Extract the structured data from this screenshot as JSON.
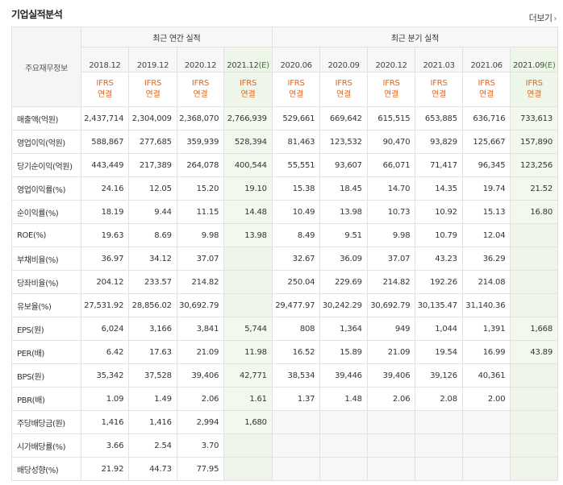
{
  "header": {
    "title": "기업실적분석",
    "more_label": "더보기"
  },
  "table": {
    "row_header_label": "주요재무정보",
    "groups": [
      {
        "label": "최근 연간 실적"
      },
      {
        "label": "최근 분기 실적"
      }
    ],
    "periods": [
      {
        "label": "2018.12",
        "estimate_mark": "",
        "accounting": "IFRS",
        "basis": "연결",
        "estimate": false
      },
      {
        "label": "2019.12",
        "estimate_mark": "",
        "accounting": "IFRS",
        "basis": "연결",
        "estimate": false
      },
      {
        "label": "2020.12",
        "estimate_mark": "",
        "accounting": "IFRS",
        "basis": "연결",
        "estimate": false
      },
      {
        "label": "2021.12",
        "estimate_mark": "(E)",
        "accounting": "IFRS",
        "basis": "연결",
        "estimate": true
      },
      {
        "label": "2020.06",
        "estimate_mark": "",
        "accounting": "IFRS",
        "basis": "연결",
        "estimate": false
      },
      {
        "label": "2020.09",
        "estimate_mark": "",
        "accounting": "IFRS",
        "basis": "연결",
        "estimate": false
      },
      {
        "label": "2020.12",
        "estimate_mark": "",
        "accounting": "IFRS",
        "basis": "연결",
        "estimate": false
      },
      {
        "label": "2021.03",
        "estimate_mark": "",
        "accounting": "IFRS",
        "basis": "연결",
        "estimate": false
      },
      {
        "label": "2021.06",
        "estimate_mark": "",
        "accounting": "IFRS",
        "basis": "연결",
        "estimate": false
      },
      {
        "label": "2021.09",
        "estimate_mark": "(E)",
        "accounting": "IFRS",
        "basis": "연결",
        "estimate": true
      }
    ],
    "rows": [
      {
        "label": "매출액(억원)",
        "values": [
          "2,437,714",
          "2,304,009",
          "2,368,070",
          "2,766,939",
          "529,661",
          "669,642",
          "615,515",
          "653,885",
          "636,716",
          "733,613"
        ]
      },
      {
        "label": "영업이익(억원)",
        "values": [
          "588,867",
          "277,685",
          "359,939",
          "528,394",
          "81,463",
          "123,532",
          "90,470",
          "93,829",
          "125,667",
          "157,890"
        ]
      },
      {
        "label": "당기순이익(억원)",
        "values": [
          "443,449",
          "217,389",
          "264,078",
          "400,544",
          "55,551",
          "93,607",
          "66,071",
          "71,417",
          "96,345",
          "123,256"
        ]
      },
      {
        "label": "영업이익률(%)",
        "values": [
          "24.16",
          "12.05",
          "15.20",
          "19.10",
          "15.38",
          "18.45",
          "14.70",
          "14.35",
          "19.74",
          "21.52"
        ]
      },
      {
        "label": "순이익률(%)",
        "values": [
          "18.19",
          "9.44",
          "11.15",
          "14.48",
          "10.49",
          "13.98",
          "10.73",
          "10.92",
          "15.13",
          "16.80"
        ]
      },
      {
        "label": "ROE(%)",
        "values": [
          "19.63",
          "8.69",
          "9.98",
          "13.98",
          "8.49",
          "9.51",
          "9.98",
          "10.79",
          "12.04",
          ""
        ]
      },
      {
        "label": "부채비율(%)",
        "values": [
          "36.97",
          "34.12",
          "37.07",
          "",
          "32.67",
          "36.09",
          "37.07",
          "43.23",
          "36.29",
          ""
        ]
      },
      {
        "label": "당좌비율(%)",
        "values": [
          "204.12",
          "233.57",
          "214.82",
          "",
          "250.04",
          "229.69",
          "214.82",
          "192.26",
          "214.08",
          ""
        ]
      },
      {
        "label": "유보율(%)",
        "values": [
          "27,531.92",
          "28,856.02",
          "30,692.79",
          "",
          "29,477.97",
          "30,242.29",
          "30,692.79",
          "30,135.47",
          "31,140.36",
          ""
        ]
      },
      {
        "label": "EPS(원)",
        "values": [
          "6,024",
          "3,166",
          "3,841",
          "5,744",
          "808",
          "1,364",
          "949",
          "1,044",
          "1,391",
          "1,668"
        ]
      },
      {
        "label": "PER(배)",
        "values": [
          "6.42",
          "17.63",
          "21.09",
          "11.98",
          "16.52",
          "15.89",
          "21.09",
          "19.54",
          "16.99",
          "43.89"
        ]
      },
      {
        "label": "BPS(원)",
        "values": [
          "35,342",
          "37,528",
          "39,406",
          "42,771",
          "38,534",
          "39,446",
          "39,406",
          "39,126",
          "40,361",
          ""
        ]
      },
      {
        "label": "PBR(배)",
        "values": [
          "1.09",
          "1.49",
          "2.06",
          "1.61",
          "1.37",
          "1.48",
          "2.06",
          "2.08",
          "2.00",
          ""
        ]
      },
      {
        "label": "주당배당금(원)",
        "values": [
          "1,416",
          "1,416",
          "2,994",
          "1,680",
          "",
          "",
          "",
          "",
          "",
          ""
        ]
      },
      {
        "label": "시가배당률(%)",
        "values": [
          "3.66",
          "2.54",
          "3.70",
          "",
          "",
          "",
          "",
          "",
          "",
          ""
        ]
      },
      {
        "label": "배당성향(%)",
        "values": [
          "21.92",
          "44.73",
          "77.95",
          "",
          "",
          "",
          "",
          "",
          "",
          ""
        ]
      }
    ]
  },
  "icons": {
    "more_arrow": "chevron-right-icon"
  },
  "colors": {
    "accounting_label": "#e4641a",
    "estimate_background": "#eef6ea",
    "estimate_mark": "#3a7d2a"
  }
}
